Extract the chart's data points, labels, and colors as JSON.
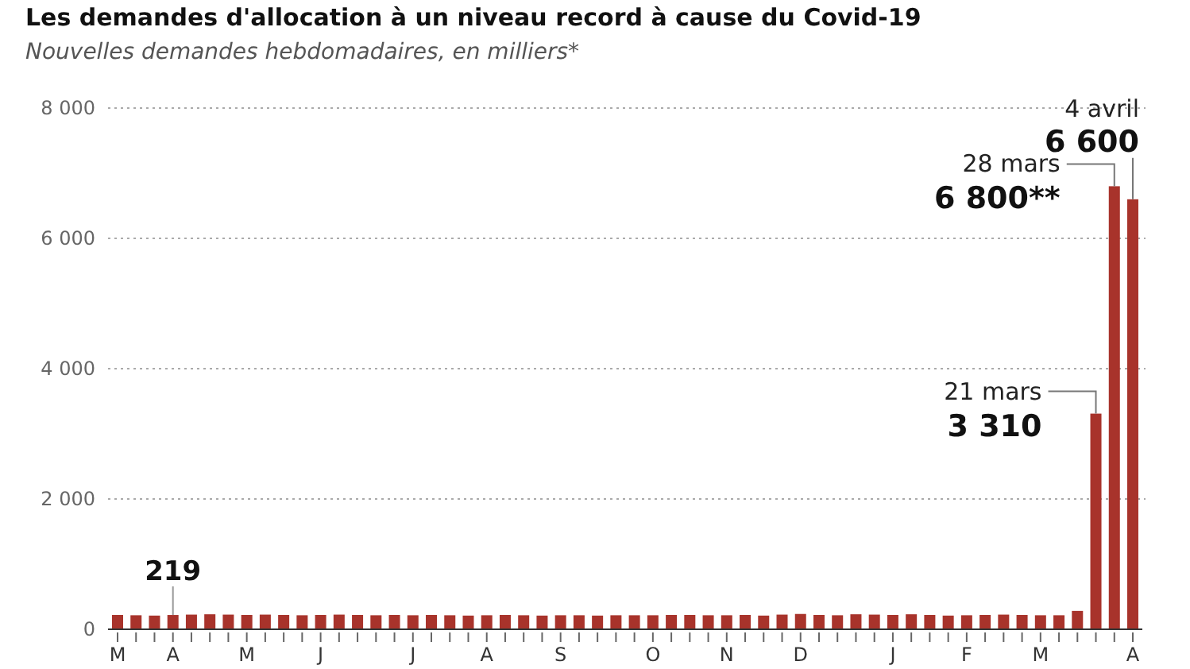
{
  "chart_data": {
    "type": "bar",
    "title": "Les demandes d'allocation à un niveau record à cause du Covid-19",
    "subtitle": "Nouvelles demandes hebdomadaires, en milliers*",
    "categories": [
      "M",
      null,
      null,
      "A",
      null,
      null,
      null,
      "M",
      null,
      null,
      null,
      "J",
      null,
      null,
      null,
      null,
      "J",
      null,
      null,
      null,
      "A",
      null,
      null,
      null,
      "S",
      null,
      null,
      null,
      null,
      "O",
      null,
      null,
      null,
      "N",
      null,
      null,
      null,
      "D",
      null,
      null,
      null,
      null,
      "J",
      null,
      null,
      null,
      "F",
      null,
      null,
      null,
      "M",
      null,
      null,
      null,
      null,
      "A"
    ],
    "values": [
      220,
      215,
      210,
      219,
      225,
      230,
      225,
      220,
      225,
      220,
      215,
      220,
      225,
      220,
      215,
      220,
      215,
      220,
      215,
      210,
      215,
      220,
      215,
      210,
      215,
      215,
      210,
      215,
      215,
      215,
      220,
      220,
      215,
      215,
      220,
      210,
      225,
      235,
      220,
      215,
      230,
      225,
      220,
      230,
      220,
      210,
      215,
      220,
      225,
      220,
      215,
      215,
      282,
      3310,
      6800,
      6600
    ],
    "value_labels": [
      null,
      null,
      null,
      "219",
      null,
      null,
      null,
      null,
      null,
      null,
      null,
      null,
      null,
      null,
      null,
      null,
      null,
      null,
      null,
      null,
      null,
      null,
      null,
      null,
      null,
      null,
      null,
      null,
      null,
      null,
      null,
      null,
      null,
      null,
      null,
      null,
      null,
      null,
      null,
      null,
      null,
      null,
      null,
      null,
      null,
      null,
      null,
      null,
      null,
      null,
      null,
      null,
      null,
      "21 mars\n3 310",
      "28 mars\n6 800**",
      "4 avril\n6 600"
    ],
    "color": "#a8332b",
    "ylim": [
      0,
      8000
    ],
    "yticks": [
      {
        "value": 0,
        "label": "0"
      },
      {
        "value": 2000,
        "label": "2 000"
      },
      {
        "value": 4000,
        "label": "4 000"
      },
      {
        "value": 6000,
        "label": "6 000"
      },
      {
        "value": 8000,
        "label": "8 000"
      }
    ],
    "grid": "y"
  }
}
